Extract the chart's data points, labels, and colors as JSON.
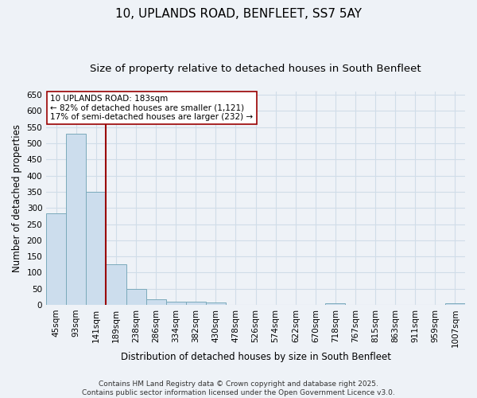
{
  "title": "10, UPLANDS ROAD, BENFLEET, SS7 5AY",
  "subtitle": "Size of property relative to detached houses in South Benfleet",
  "xlabel": "Distribution of detached houses by size in South Benfleet",
  "ylabel": "Number of detached properties",
  "bar_color": "#ccdded",
  "bar_edge_color": "#7aaabb",
  "grid_color": "#d0dde8",
  "background_color": "#eef2f7",
  "plot_bg_color": "#eef2f7",
  "categories": [
    "45sqm",
    "93sqm",
    "141sqm",
    "189sqm",
    "238sqm",
    "286sqm",
    "334sqm",
    "382sqm",
    "430sqm",
    "478sqm",
    "526sqm",
    "574sqm",
    "622sqm",
    "670sqm",
    "718sqm",
    "767sqm",
    "815sqm",
    "863sqm",
    "911sqm",
    "959sqm",
    "1007sqm"
  ],
  "values": [
    283,
    530,
    350,
    125,
    50,
    17,
    10,
    9,
    7,
    0,
    0,
    0,
    0,
    0,
    5,
    0,
    0,
    0,
    0,
    0,
    5
  ],
  "ylim": [
    0,
    660
  ],
  "yticks": [
    0,
    50,
    100,
    150,
    200,
    250,
    300,
    350,
    400,
    450,
    500,
    550,
    600,
    650
  ],
  "reference_line_x": 2.5,
  "reference_line_color": "#990000",
  "annotation_text": "10 UPLANDS ROAD: 183sqm\n← 82% of detached houses are smaller (1,121)\n17% of semi-detached houses are larger (232) →",
  "annotation_box_color": "#ffffff",
  "annotation_box_edge": "#990000",
  "footer_text": "Contains HM Land Registry data © Crown copyright and database right 2025.\nContains public sector information licensed under the Open Government Licence v3.0.",
  "title_fontsize": 11,
  "subtitle_fontsize": 9.5,
  "tick_fontsize": 7.5,
  "label_fontsize": 8.5,
  "annotation_fontsize": 7.5,
  "footer_fontsize": 6.5
}
